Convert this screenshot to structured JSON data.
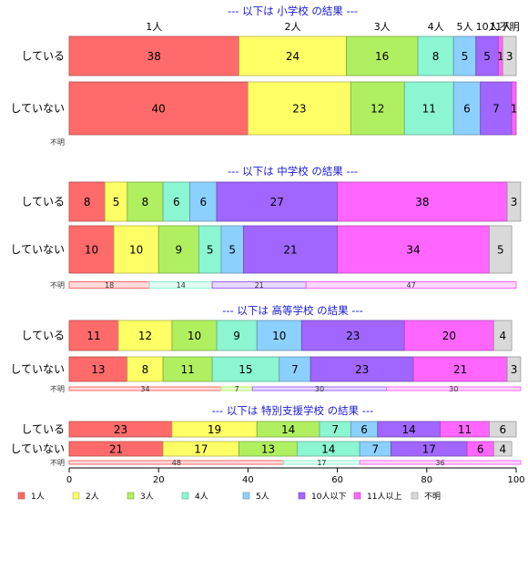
{
  "chart_data": {
    "type": "bar",
    "orientation": "horizontal-stacked-percent",
    "categories": [
      "1人",
      "2人",
      "3人",
      "4人",
      "5人",
      "10人以下",
      "11人以上",
      "不明"
    ],
    "colors": [
      "#ff6b6b",
      "#ffff66",
      "#b0f060",
      "#8cf5d2",
      "#8cd0ff",
      "#a066ff",
      "#ff66ff",
      "#d9d9d9"
    ],
    "xlim": [
      0,
      100
    ],
    "xticks": [
      "0",
      "20",
      "40",
      "60",
      "80",
      "100"
    ],
    "legend_position": "bottom",
    "top_category_labels": [
      "1人",
      "2人",
      "3人",
      "4人",
      "5人",
      "10人",
      "11人",
      "不明"
    ],
    "panels": [
      {
        "title": "--- 以下は 小学校 の結果 ---",
        "rows": [
          {
            "label": "している",
            "values": [
              38,
              24,
              16,
              8,
              5,
              5,
              1,
              3
            ]
          },
          {
            "label": "していない",
            "values": [
              40,
              23,
              12,
              11,
              6,
              7,
              1,
              0
            ]
          }
        ],
        "unknown_label": "不明",
        "unknown_values": []
      },
      {
        "title": "--- 以下は 中学校 の結果 ---",
        "rows": [
          {
            "label": "している",
            "values": [
              8,
              5,
              8,
              6,
              6,
              27,
              38,
              3
            ]
          },
          {
            "label": "していない",
            "values": [
              10,
              10,
              9,
              5,
              5,
              21,
              34,
              5
            ]
          }
        ],
        "unknown_label": "不明",
        "unknown_values": [
          18,
          0,
          0,
          14,
          0,
          21,
          47,
          0
        ]
      },
      {
        "title": "--- 以下は 高等学校 の結果 ---",
        "rows": [
          {
            "label": "している",
            "values": [
              11,
              12,
              10,
              9,
              10,
              23,
              20,
              4
            ]
          },
          {
            "label": "していない",
            "values": [
              13,
              8,
              11,
              15,
              7,
              23,
              21,
              3
            ]
          }
        ],
        "unknown_label": "不明",
        "unknown_values": [
          34,
          0,
          7,
          0,
          0,
          30,
          30,
          0
        ]
      },
      {
        "title": "--- 以下は 特別支援学校 の結果 ---",
        "rows": [
          {
            "label": "している",
            "values": [
              23,
              19,
              14,
              7,
              6,
              14,
              11,
              6
            ]
          },
          {
            "label": "していない",
            "values": [
              21,
              17,
              13,
              14,
              7,
              17,
              6,
              4
            ]
          }
        ],
        "unknown_label": "不明",
        "unknown_values": [
          48,
          0,
          0,
          17,
          0,
          0,
          36,
          0
        ]
      }
    ]
  }
}
